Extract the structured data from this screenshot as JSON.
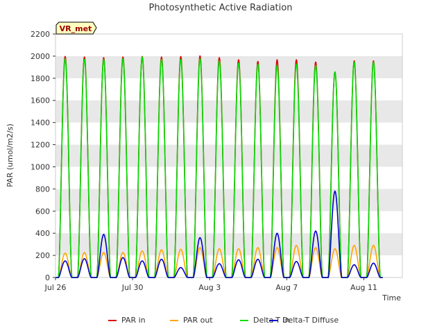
{
  "chart_data": {
    "type": "line",
    "title": "Photosynthetic Active Radiation",
    "xlabel": "Time",
    "ylabel": "PAR (umol/m2/s)",
    "ylim": [
      0,
      2200
    ],
    "xlim_days": [
      0,
      18
    ],
    "yticks": [
      0,
      200,
      400,
      600,
      800,
      1000,
      1200,
      1400,
      1600,
      1800,
      2000,
      2200
    ],
    "xticks": [
      {
        "day": 0,
        "label": "Jul 26"
      },
      {
        "day": 4,
        "label": "Jul 30"
      },
      {
        "day": 8,
        "label": "Aug 3"
      },
      {
        "day": 12,
        "label": "Aug 7"
      },
      {
        "day": 16,
        "label": "Aug 11"
      }
    ],
    "grid": "horizontal-bands",
    "site_badge": "VR_met",
    "legend_position": "bottom",
    "colors": {
      "par_in": "#dd0000",
      "par_out": "#ffa500",
      "delta_t_in": "#00dd00",
      "delta_t_diffuse": "#0000cc",
      "band": "#e8e8e8",
      "badge_bg": "#ffffc0",
      "badge_text": "#990000"
    },
    "series": [
      {
        "name": "PAR in",
        "color": "#dd0000",
        "daily_peaks": [
          2000,
          1995,
          1990,
          1995,
          2000,
          1995,
          2000,
          2005,
          1990,
          1970,
          1955,
          1970,
          1970,
          1950,
          1860,
          1960,
          1960
        ]
      },
      {
        "name": "PAR out",
        "color": "#ffa500",
        "daily_peaks": [
          220,
          225,
          225,
          225,
          240,
          250,
          255,
          270,
          260,
          260,
          270,
          270,
          290,
          270,
          260,
          290,
          290
        ]
      },
      {
        "name": "Delta-T in",
        "color": "#00dd00",
        "daily_peaks": [
          1980,
          1975,
          1975,
          1980,
          1995,
          1975,
          1975,
          1980,
          1960,
          1940,
          1930,
          1920,
          1930,
          1920,
          1860,
          1950,
          1950
        ]
      },
      {
        "name": "Delta-T Diffuse",
        "color": "#0000cc",
        "daily_peaks": [
          150,
          170,
          390,
          180,
          150,
          165,
          90,
          360,
          125,
          160,
          165,
          400,
          145,
          420,
          780,
          115,
          130
        ]
      }
    ],
    "day_start": 0.15,
    "day_end": 0.85
  }
}
